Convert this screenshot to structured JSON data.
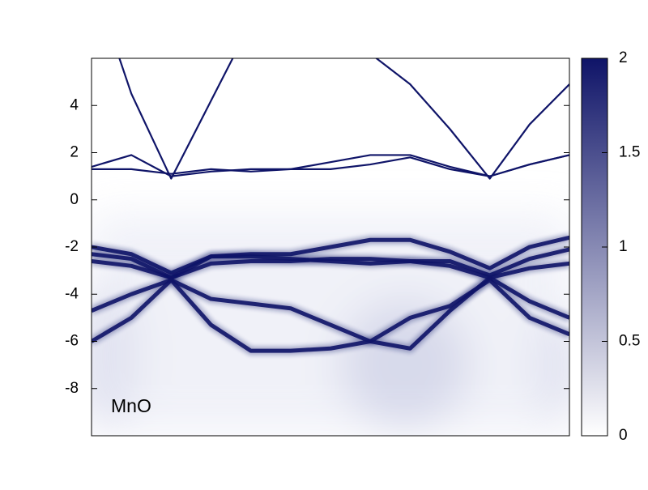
{
  "chart_data": {
    "type": "spectral",
    "annotation": "MnO",
    "color": "#0f1468",
    "x": [
      0,
      1,
      2,
      3,
      4,
      5,
      6,
      7,
      8,
      9,
      10,
      11,
      12
    ],
    "xlim": [
      0,
      12
    ],
    "ylim": [
      -10,
      6
    ],
    "yticks": [
      -8,
      -6,
      -4,
      -2,
      0,
      2,
      4
    ],
    "zlim": [
      0,
      2
    ],
    "zticks": [
      0,
      0.5,
      1,
      1.5,
      2
    ],
    "series": [
      {
        "values": [
          9.5,
          4.5,
          0.9,
          4.2,
          7.5,
          null,
          null,
          6.2,
          4.9,
          3.0,
          0.9,
          3.2,
          4.9
        ]
      },
      {
        "values": [
          1.4,
          1.9,
          1.0,
          1.2,
          1.3,
          1.3,
          1.6,
          1.9,
          1.9,
          1.4,
          1.0,
          1.5,
          1.9
        ]
      },
      {
        "values": [
          1.3,
          1.3,
          1.1,
          1.3,
          1.2,
          1.3,
          1.3,
          1.5,
          1.8,
          1.3,
          1.0,
          1.5,
          1.9
        ]
      },
      {
        "values": [
          -2.0,
          -2.3,
          -3.1,
          -2.4,
          -2.3,
          -2.3,
          -2.0,
          -1.7,
          -1.7,
          -2.2,
          -2.9,
          -2.0,
          -1.6
        ]
      },
      {
        "values": [
          -2.3,
          -2.5,
          -3.3,
          -2.4,
          -2.4,
          -2.5,
          -2.6,
          -2.7,
          -2.6,
          -2.6,
          -3.2,
          -2.5,
          -2.1
        ]
      },
      {
        "values": [
          -2.6,
          -2.8,
          -3.3,
          -2.7,
          -2.6,
          -2.6,
          -2.5,
          -2.5,
          -2.6,
          -2.8,
          -3.3,
          -2.9,
          -2.7
        ]
      },
      {
        "values": [
          -4.7,
          -4.0,
          -3.4,
          -4.2,
          -4.4,
          -4.6,
          -5.3,
          -6.0,
          -6.3,
          -4.7,
          -3.3,
          -4.3,
          -5.0
        ]
      },
      {
        "values": [
          -6.0,
          -5.0,
          -3.4,
          -5.3,
          -6.4,
          -6.4,
          -6.3,
          -6.0,
          -5.0,
          -4.5,
          -3.4,
          -5.0,
          -5.7
        ]
      }
    ]
  }
}
